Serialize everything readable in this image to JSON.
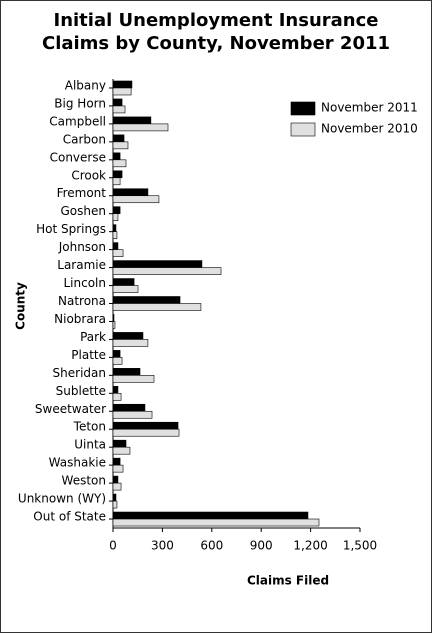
{
  "chart_data": {
    "type": "hbar",
    "title": "Initial Unemployment Insurance Claims by County, November 2011",
    "xlabel": "Claims Filed",
    "ylabel": "County",
    "categories": [
      "Albany",
      "Big Horn",
      "Campbell",
      "Carbon",
      "Converse",
      "Crook",
      "Fremont",
      "Goshen",
      "Hot Springs",
      "Johnson",
      "Laramie",
      "Lincoln",
      "Natrona",
      "Niobrara",
      "Park",
      "Platte",
      "Sheridan",
      "Sublette",
      "Sweetwater",
      "Teton",
      "Uinta",
      "Washakie",
      "Weston",
      "Unknown (WY)",
      "Out of State"
    ],
    "series": [
      {
        "name": "November 2011",
        "color": "#000000",
        "values": [
          115,
          55,
          230,
          67,
          43,
          55,
          212,
          43,
          18,
          30,
          540,
          128,
          407,
          6,
          182,
          43,
          164,
          30,
          194,
          395,
          79,
          43,
          30,
          18,
          1184
        ]
      },
      {
        "name": "November 2010",
        "color": "#e0e0e0",
        "values": [
          110,
          73,
          334,
          91,
          79,
          43,
          279,
          30,
          24,
          61,
          656,
          152,
          534,
          12,
          212,
          55,
          249,
          49,
          237,
          401,
          103,
          61,
          49,
          24,
          1251
        ]
      }
    ],
    "xlim": [
      0,
      1500
    ],
    "xticks": [
      0,
      300,
      600,
      900,
      {
        "value": 1200,
        "label": "1,200"
      },
      {
        "value": 1500,
        "label": "1,500"
      }
    ],
    "legend": "upper right"
  }
}
